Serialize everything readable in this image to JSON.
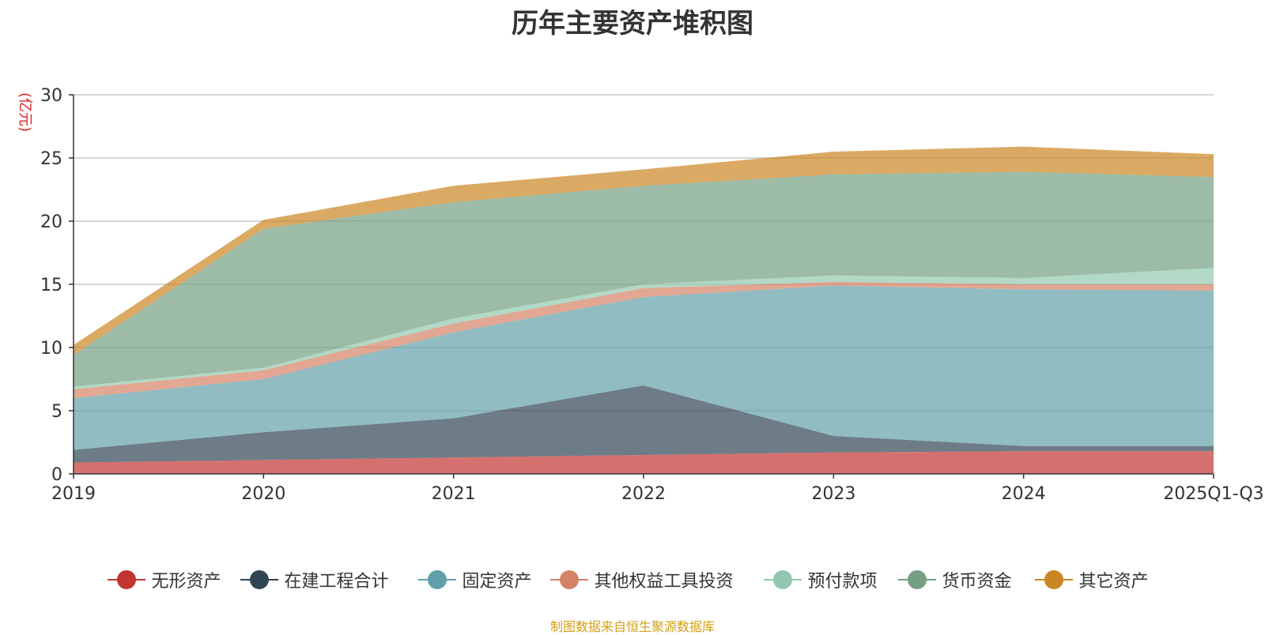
{
  "chart_data": {
    "type": "area",
    "stacked": true,
    "title": "历年主要资产堆积图",
    "ylabel": "(亿元)",
    "xlabel": "",
    "ylim": [
      0,
      30
    ],
    "yticks": [
      0,
      5,
      10,
      15,
      20,
      25,
      30
    ],
    "categories": [
      "2019",
      "2020",
      "2021",
      "2022",
      "2023",
      "2024",
      "2025Q1-Q3"
    ],
    "series": [
      {
        "name": "无形资产",
        "color": "#c23531",
        "values": [
          0.9,
          1.1,
          1.3,
          1.5,
          1.7,
          1.8,
          1.8
        ]
      },
      {
        "name": "在建工程合计",
        "color": "#2f4554",
        "values": [
          1.0,
          2.2,
          3.1,
          5.5,
          1.3,
          0.4,
          0.4
        ]
      },
      {
        "name": "固定资产",
        "color": "#61a0a8",
        "values": [
          4.1,
          4.2,
          6.8,
          7.0,
          11.9,
          12.4,
          12.3
        ]
      },
      {
        "name": "其他权益工具投资",
        "color": "#d48265",
        "values": [
          0.7,
          0.7,
          0.7,
          0.7,
          0.3,
          0.4,
          0.5
        ]
      },
      {
        "name": "预付款项",
        "color": "#91c7ae",
        "values": [
          0.2,
          0.2,
          0.4,
          0.3,
          0.5,
          0.5,
          1.3
        ]
      },
      {
        "name": "货币资金",
        "color": "#749f83",
        "values": [
          2.5,
          11.0,
          9.2,
          7.8,
          8.0,
          8.4,
          7.2
        ]
      },
      {
        "name": "其它资产",
        "color": "#ca8622",
        "values": [
          0.8,
          0.7,
          1.3,
          1.3,
          1.8,
          2.0,
          1.8
        ]
      }
    ]
  },
  "source_note": "制图数据来自恒生聚源数据库"
}
